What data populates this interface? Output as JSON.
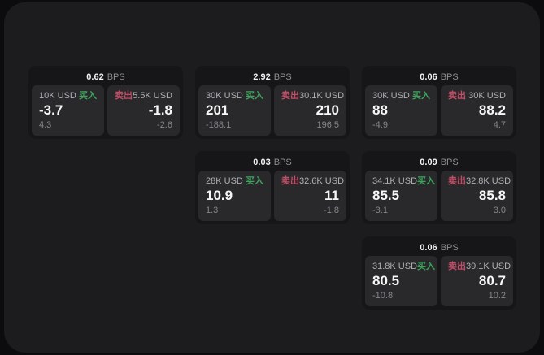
{
  "labels": {
    "bps": "BPS",
    "buy": "买入",
    "sell": "卖出"
  },
  "colors": {
    "buy_green": "#3ea35c",
    "sell_red": "#c14d66",
    "panel_bg": "#1c1c1e",
    "card_bg": "#161618",
    "subcard_bg": "#29292c",
    "text_bright": "#f2f2f4",
    "text_dim": "#8e8e93"
  },
  "cards": [
    {
      "row": 1,
      "col": 1,
      "bps": "0.62",
      "buy": {
        "size": "10K USD",
        "value": "-3.7",
        "sub_value": "4.3"
      },
      "sell": {
        "size": "5.5K USD",
        "value": "-1.8",
        "sub_value": "-2.6"
      }
    },
    {
      "row": 1,
      "col": 2,
      "bps": "2.92",
      "buy": {
        "size": "30K USD",
        "value": "201",
        "sub_value": "-188.1"
      },
      "sell": {
        "size": "30.1K USD",
        "value": "210",
        "sub_value": "196.5"
      }
    },
    {
      "row": 1,
      "col": 3,
      "bps": "0.06",
      "buy": {
        "size": "30K USD",
        "value": "88",
        "sub_value": "-4.9"
      },
      "sell": {
        "size": "30K USD",
        "value": "88.2",
        "sub_value": "4.7"
      }
    },
    {
      "row": 2,
      "col": 2,
      "bps": "0.03",
      "buy": {
        "size": "28K USD",
        "value": "10.9",
        "sub_value": "1.3"
      },
      "sell": {
        "size": "32.6K USD",
        "value": "11",
        "sub_value": "-1.8"
      }
    },
    {
      "row": 2,
      "col": 3,
      "bps": "0.09",
      "buy": {
        "size": "34.1K USD",
        "value": "85.5",
        "sub_value": "-3.1"
      },
      "sell": {
        "size": "32.8K USD",
        "value": "85.8",
        "sub_value": "3.0"
      }
    },
    {
      "row": 3,
      "col": 3,
      "bps": "0.06",
      "buy": {
        "size": "31.8K USD",
        "value": "80.5",
        "sub_value": "-10.8"
      },
      "sell": {
        "size": "39.1K USD",
        "value": "80.7",
        "sub_value": "10.2"
      }
    }
  ]
}
